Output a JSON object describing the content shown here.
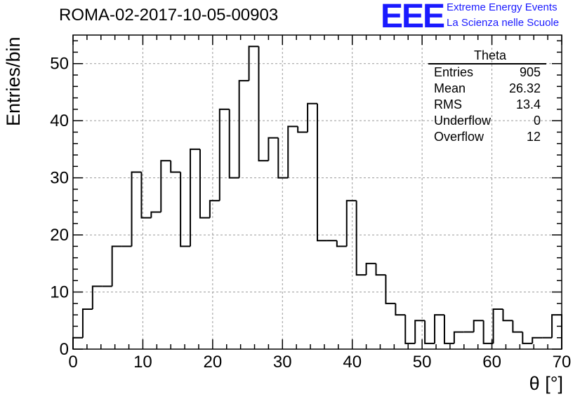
{
  "chart_data": {
    "type": "bar",
    "title": "ROMA-02-2017-10-05-00903",
    "xlabel": "θ [°]",
    "ylabel": "Entries/bin",
    "xlim": [
      0,
      70
    ],
    "ylim": [
      0,
      55
    ],
    "bin_width": 1.4,
    "x_ticks": [
      "0",
      "10",
      "20",
      "30",
      "40",
      "50",
      "60",
      "70"
    ],
    "y_ticks": [
      "0",
      "10",
      "20",
      "30",
      "40",
      "50"
    ],
    "grid": true,
    "values": [
      2,
      7,
      11,
      11,
      18,
      18,
      31,
      23,
      24,
      33,
      31,
      18,
      35,
      23,
      26,
      42,
      30,
      47,
      53,
      33,
      37,
      30,
      39,
      38,
      43,
      19,
      19,
      18,
      26,
      13,
      15,
      13,
      8,
      6,
      1,
      5,
      1,
      6,
      1,
      3,
      3,
      5,
      1,
      7,
      5,
      3,
      1,
      2,
      2,
      6
    ],
    "stats": {
      "name": "Theta",
      "rows": [
        {
          "label": "Entries",
          "value": "905"
        },
        {
          "label": "Mean",
          "value": "26.32"
        },
        {
          "label": "RMS",
          "value": "13.4"
        },
        {
          "label": "Underflow",
          "value": "0"
        },
        {
          "label": "Overflow",
          "value": "12"
        }
      ]
    }
  },
  "logo": {
    "mark": "EEE",
    "line1": "Extreme Energy Events",
    "line2": "La Scienza nelle Scuole",
    "color": "#1a1aff"
  }
}
